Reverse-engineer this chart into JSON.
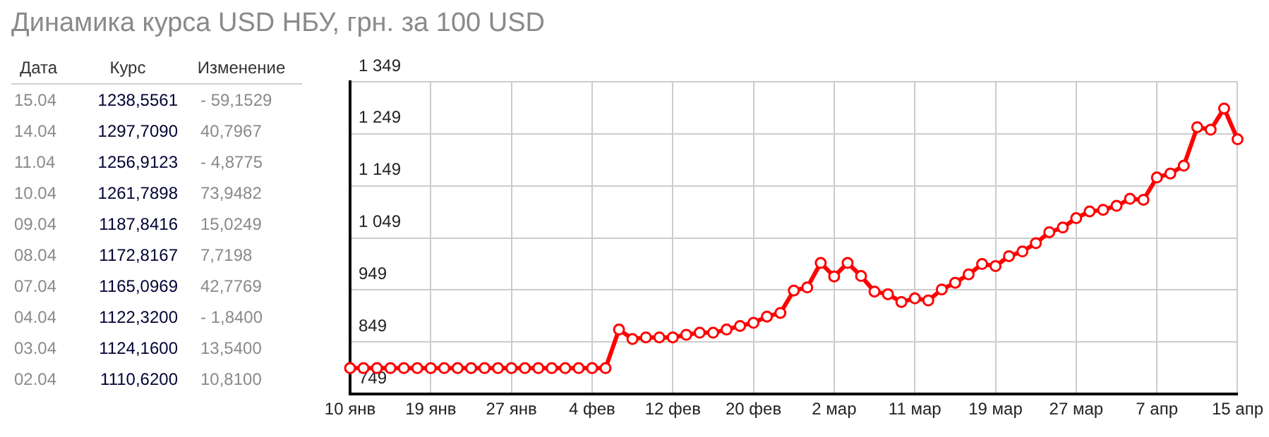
{
  "chart_data": [
    {
      "type": "other",
      "title": "Динамика курса USD НБУ, грн. за 100 USD",
      "annotations": [
        "Дата",
        "Курс",
        "Изменение",
        "15.04",
        "1238,5561",
        "- 59,1529",
        "14.04",
        "1297,7090",
        "40,7967",
        "11.04",
        "1256,9123",
        "- 4,8775",
        "10.04",
        "1261,7898",
        "73,9482",
        "09.04",
        "1187,8416",
        "15,0249",
        "08.04",
        "1172,8167",
        "7,7198",
        "07.04",
        "1165,0969",
        "42,7769",
        "04.04",
        "1122,3200",
        "- 1,8400",
        "03.04",
        "1124,1600",
        "13,5400",
        "02.04",
        "1110,6200",
        "10,8100"
      ]
    },
    {
      "type": "line",
      "categories": [
        "10 янв",
        null,
        null,
        null,
        null,
        null,
        "19 янв",
        null,
        null,
        null,
        null,
        null,
        "27 янв",
        null,
        null,
        null,
        null,
        null,
        "4 фев",
        null,
        null,
        null,
        null,
        null,
        "12 фев",
        null,
        null,
        null,
        null,
        null,
        "20 фев",
        null,
        null,
        null,
        null,
        null,
        "2 мар",
        null,
        null,
        null,
        null,
        null,
        "11 мар",
        null,
        null,
        null,
        null,
        null,
        "19 мар",
        null,
        null,
        null,
        null,
        null,
        "27 мар",
        null,
        null,
        null,
        null,
        null,
        "7 апр",
        null,
        null,
        null,
        null,
        null,
        "15 апр"
      ],
      "series": [
        {
          "color": "#ff0000",
          "values": [
            799,
            799,
            799,
            799,
            799,
            799,
            799,
            799,
            799,
            799,
            799,
            799,
            799,
            799,
            799,
            799,
            799,
            799,
            799,
            799,
            873,
            855,
            858,
            858,
            858,
            863,
            867,
            867,
            873,
            880,
            886,
            898,
            905,
            948,
            954,
            1001,
            975,
            1001,
            976,
            946,
            941,
            926,
            933,
            929,
            950,
            963,
            979,
            999,
            995,
            1014,
            1023,
            1039,
            1060,
            1069,
            1087,
            1100,
            1103,
            1110.62,
            1124.16,
            1122.32,
            1165.0969,
            1172.8167,
            1187.8416,
            1261.7898,
            1256.9123,
            1297.709,
            1238.5561
          ]
        }
      ],
      "ylim": [
        749,
        1349
      ],
      "yticks": [
        749,
        849,
        949,
        {
          "value": 1049,
          "label": "1 049"
        },
        {
          "value": 1149,
          "label": "1 149"
        },
        {
          "value": 1249,
          "label": "1 249"
        },
        {
          "value": 1349,
          "label": "1 349"
        }
      ],
      "grid": true,
      "marker": "circle",
      "line_style": "solid"
    }
  ]
}
